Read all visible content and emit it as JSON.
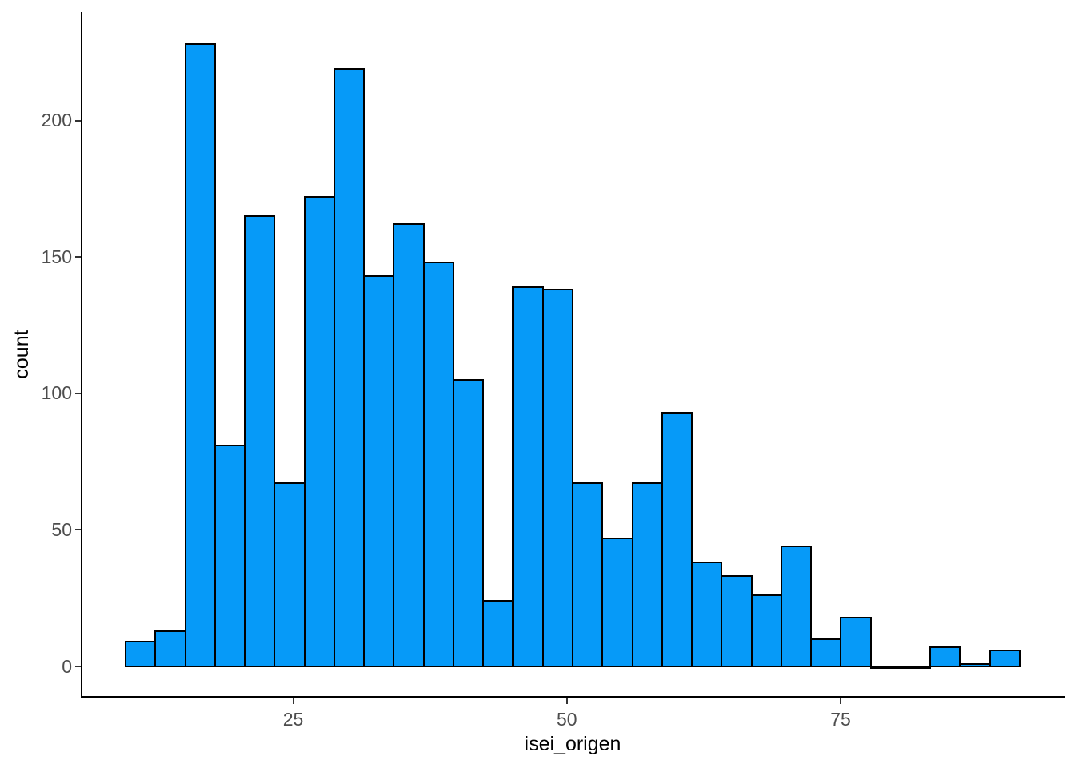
{
  "chart_data": {
    "type": "bar",
    "subtype": "histogram",
    "title": "",
    "xlabel": "isei_origen",
    "ylabel": "count",
    "x_tick_labels": [
      "25",
      "50",
      "75"
    ],
    "x_tick_values": [
      25,
      50,
      75
    ],
    "y_tick_labels": [
      "0",
      "50",
      "100",
      "150",
      "200"
    ],
    "y_tick_values": [
      0,
      50,
      100,
      150,
      200
    ],
    "xlim": [
      5.7,
      95.4
    ],
    "ylim": [
      0,
      240
    ],
    "grid": false,
    "legend": false,
    "bins": {
      "start": 9.7,
      "width": 2.722,
      "n": 30
    },
    "bin_centers": [
      11.1,
      13.8,
      16.5,
      19.2,
      22.0,
      24.7,
      27.4,
      30.1,
      32.8,
      35.6,
      38.3,
      41.0,
      43.7,
      46.4,
      49.2,
      51.9,
      54.6,
      57.3,
      60.1,
      62.8,
      65.5,
      68.2,
      70.9,
      73.7,
      76.4,
      79.1,
      81.8,
      84.6,
      87.3,
      90.0
    ],
    "counts": [
      9,
      13,
      228,
      81,
      165,
      67,
      172,
      219,
      143,
      162,
      148,
      105,
      24,
      139,
      138,
      67,
      47,
      67,
      93,
      38,
      33,
      26,
      44,
      10,
      18,
      0,
      0,
      7,
      1,
      6
    ],
    "colors": {
      "bar_fill": "#069af8",
      "bar_stroke": "#000000",
      "axis_line": "#000000",
      "tick_label": "#4d4d4d",
      "axis_title": "#000000",
      "background": "#ffffff"
    }
  }
}
